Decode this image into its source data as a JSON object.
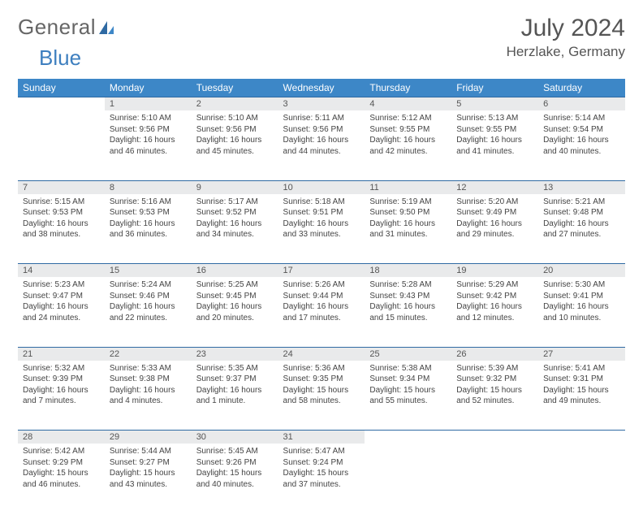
{
  "logo": {
    "text1": "General",
    "text2": "Blue"
  },
  "title": "July 2024",
  "location": "Herzlake, Germany",
  "colors": {
    "header_bg": "#3d87c7",
    "header_fg": "#ffffff",
    "daynum_bg": "#e9eaeb",
    "row_border": "#2f6aa3",
    "text": "#444444",
    "logo_blue": "#3e7fbf"
  },
  "weekdays": [
    "Sunday",
    "Monday",
    "Tuesday",
    "Wednesday",
    "Thursday",
    "Friday",
    "Saturday"
  ],
  "weeks": [
    {
      "nums": [
        "",
        "1",
        "2",
        "3",
        "4",
        "5",
        "6"
      ],
      "cells": [
        {
          "sunrise": "",
          "sunset": "",
          "daylight": ""
        },
        {
          "sunrise": "Sunrise: 5:10 AM",
          "sunset": "Sunset: 9:56 PM",
          "daylight": "Daylight: 16 hours and 46 minutes."
        },
        {
          "sunrise": "Sunrise: 5:10 AM",
          "sunset": "Sunset: 9:56 PM",
          "daylight": "Daylight: 16 hours and 45 minutes."
        },
        {
          "sunrise": "Sunrise: 5:11 AM",
          "sunset": "Sunset: 9:56 PM",
          "daylight": "Daylight: 16 hours and 44 minutes."
        },
        {
          "sunrise": "Sunrise: 5:12 AM",
          "sunset": "Sunset: 9:55 PM",
          "daylight": "Daylight: 16 hours and 42 minutes."
        },
        {
          "sunrise": "Sunrise: 5:13 AM",
          "sunset": "Sunset: 9:55 PM",
          "daylight": "Daylight: 16 hours and 41 minutes."
        },
        {
          "sunrise": "Sunrise: 5:14 AM",
          "sunset": "Sunset: 9:54 PM",
          "daylight": "Daylight: 16 hours and 40 minutes."
        }
      ]
    },
    {
      "nums": [
        "7",
        "8",
        "9",
        "10",
        "11",
        "12",
        "13"
      ],
      "cells": [
        {
          "sunrise": "Sunrise: 5:15 AM",
          "sunset": "Sunset: 9:53 PM",
          "daylight": "Daylight: 16 hours and 38 minutes."
        },
        {
          "sunrise": "Sunrise: 5:16 AM",
          "sunset": "Sunset: 9:53 PM",
          "daylight": "Daylight: 16 hours and 36 minutes."
        },
        {
          "sunrise": "Sunrise: 5:17 AM",
          "sunset": "Sunset: 9:52 PM",
          "daylight": "Daylight: 16 hours and 34 minutes."
        },
        {
          "sunrise": "Sunrise: 5:18 AM",
          "sunset": "Sunset: 9:51 PM",
          "daylight": "Daylight: 16 hours and 33 minutes."
        },
        {
          "sunrise": "Sunrise: 5:19 AM",
          "sunset": "Sunset: 9:50 PM",
          "daylight": "Daylight: 16 hours and 31 minutes."
        },
        {
          "sunrise": "Sunrise: 5:20 AM",
          "sunset": "Sunset: 9:49 PM",
          "daylight": "Daylight: 16 hours and 29 minutes."
        },
        {
          "sunrise": "Sunrise: 5:21 AM",
          "sunset": "Sunset: 9:48 PM",
          "daylight": "Daylight: 16 hours and 27 minutes."
        }
      ]
    },
    {
      "nums": [
        "14",
        "15",
        "16",
        "17",
        "18",
        "19",
        "20"
      ],
      "cells": [
        {
          "sunrise": "Sunrise: 5:23 AM",
          "sunset": "Sunset: 9:47 PM",
          "daylight": "Daylight: 16 hours and 24 minutes."
        },
        {
          "sunrise": "Sunrise: 5:24 AM",
          "sunset": "Sunset: 9:46 PM",
          "daylight": "Daylight: 16 hours and 22 minutes."
        },
        {
          "sunrise": "Sunrise: 5:25 AM",
          "sunset": "Sunset: 9:45 PM",
          "daylight": "Daylight: 16 hours and 20 minutes."
        },
        {
          "sunrise": "Sunrise: 5:26 AM",
          "sunset": "Sunset: 9:44 PM",
          "daylight": "Daylight: 16 hours and 17 minutes."
        },
        {
          "sunrise": "Sunrise: 5:28 AM",
          "sunset": "Sunset: 9:43 PM",
          "daylight": "Daylight: 16 hours and 15 minutes."
        },
        {
          "sunrise": "Sunrise: 5:29 AM",
          "sunset": "Sunset: 9:42 PM",
          "daylight": "Daylight: 16 hours and 12 minutes."
        },
        {
          "sunrise": "Sunrise: 5:30 AM",
          "sunset": "Sunset: 9:41 PM",
          "daylight": "Daylight: 16 hours and 10 minutes."
        }
      ]
    },
    {
      "nums": [
        "21",
        "22",
        "23",
        "24",
        "25",
        "26",
        "27"
      ],
      "cells": [
        {
          "sunrise": "Sunrise: 5:32 AM",
          "sunset": "Sunset: 9:39 PM",
          "daylight": "Daylight: 16 hours and 7 minutes."
        },
        {
          "sunrise": "Sunrise: 5:33 AM",
          "sunset": "Sunset: 9:38 PM",
          "daylight": "Daylight: 16 hours and 4 minutes."
        },
        {
          "sunrise": "Sunrise: 5:35 AM",
          "sunset": "Sunset: 9:37 PM",
          "daylight": "Daylight: 16 hours and 1 minute."
        },
        {
          "sunrise": "Sunrise: 5:36 AM",
          "sunset": "Sunset: 9:35 PM",
          "daylight": "Daylight: 15 hours and 58 minutes."
        },
        {
          "sunrise": "Sunrise: 5:38 AM",
          "sunset": "Sunset: 9:34 PM",
          "daylight": "Daylight: 15 hours and 55 minutes."
        },
        {
          "sunrise": "Sunrise: 5:39 AM",
          "sunset": "Sunset: 9:32 PM",
          "daylight": "Daylight: 15 hours and 52 minutes."
        },
        {
          "sunrise": "Sunrise: 5:41 AM",
          "sunset": "Sunset: 9:31 PM",
          "daylight": "Daylight: 15 hours and 49 minutes."
        }
      ]
    },
    {
      "nums": [
        "28",
        "29",
        "30",
        "31",
        "",
        "",
        ""
      ],
      "cells": [
        {
          "sunrise": "Sunrise: 5:42 AM",
          "sunset": "Sunset: 9:29 PM",
          "daylight": "Daylight: 15 hours and 46 minutes."
        },
        {
          "sunrise": "Sunrise: 5:44 AM",
          "sunset": "Sunset: 9:27 PM",
          "daylight": "Daylight: 15 hours and 43 minutes."
        },
        {
          "sunrise": "Sunrise: 5:45 AM",
          "sunset": "Sunset: 9:26 PM",
          "daylight": "Daylight: 15 hours and 40 minutes."
        },
        {
          "sunrise": "Sunrise: 5:47 AM",
          "sunset": "Sunset: 9:24 PM",
          "daylight": "Daylight: 15 hours and 37 minutes."
        },
        {
          "sunrise": "",
          "sunset": "",
          "daylight": ""
        },
        {
          "sunrise": "",
          "sunset": "",
          "daylight": ""
        },
        {
          "sunrise": "",
          "sunset": "",
          "daylight": ""
        }
      ]
    }
  ]
}
